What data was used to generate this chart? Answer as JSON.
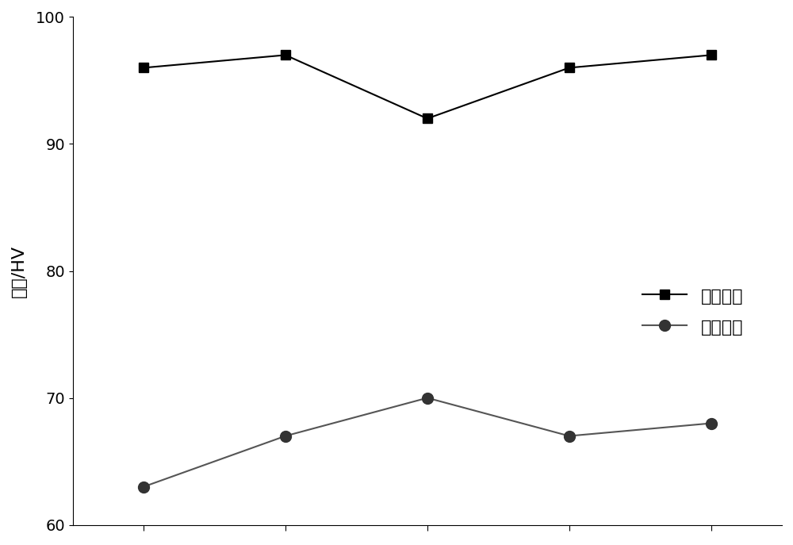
{
  "x": [
    1,
    2,
    3,
    4,
    5
  ],
  "series1_values": [
    96.0,
    97.0,
    92.0,
    96.0,
    97.0
  ],
  "series2_values": [
    63.0,
    67.0,
    70.0,
    67.0,
    68.0
  ],
  "series1_label": "热处理前",
  "series2_label": "热处理后",
  "ylabel": "硬度/HV",
  "ylim": [
    60,
    100
  ],
  "yticks": [
    60,
    70,
    80,
    90,
    100
  ],
  "line_color": "#000000",
  "marker1": "s",
  "marker2": "o",
  "markersize1": 8,
  "markersize2": 10,
  "linewidth": 1.5,
  "background_color": "#ffffff",
  "legend_fontsize": 16,
  "ylabel_fontsize": 16,
  "tick_fontsize": 14
}
